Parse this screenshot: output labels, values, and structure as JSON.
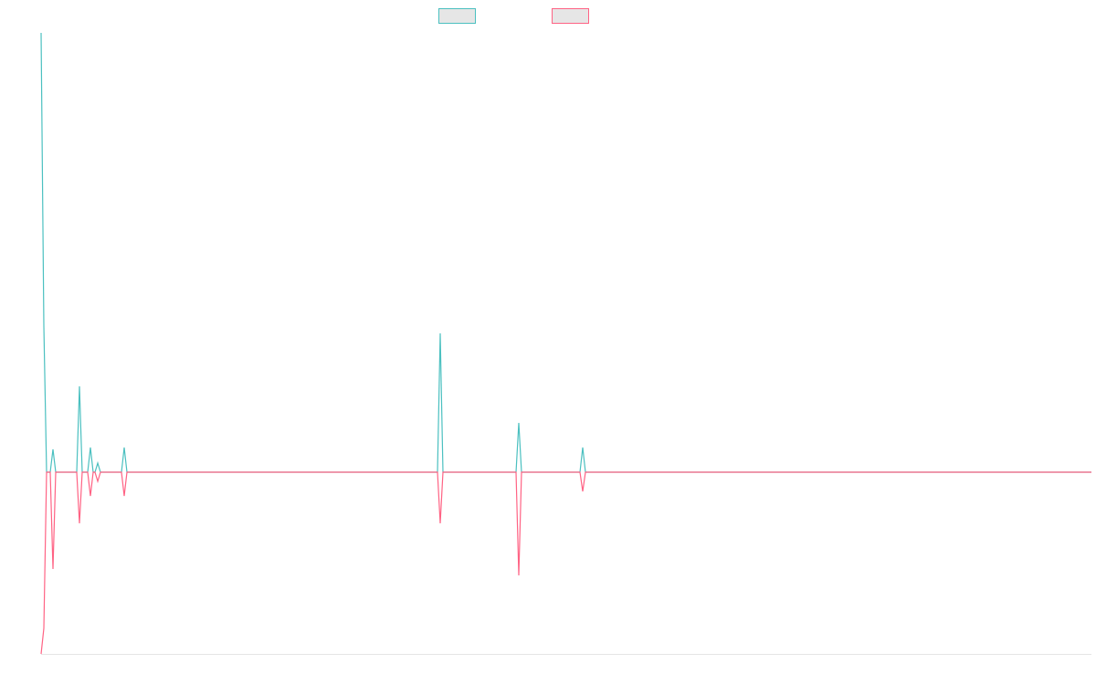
{
  "chart_data": {
    "type": "line",
    "x": [
      0,
      3,
      6,
      10,
      13,
      16,
      39,
      42,
      45,
      51,
      54,
      57,
      59,
      62,
      65,
      88,
      91,
      94,
      434,
      437,
      440,
      520,
      523,
      526,
      590,
      593,
      596,
      1150
    ],
    "xlim": [
      0,
      1150
    ],
    "ylim": [
      -199,
      481
    ],
    "series": [
      {
        "color": "#4bc0c0",
        "values": [
          481,
          160,
          0,
          0,
          25,
          0,
          0,
          94,
          0,
          0,
          27,
          0,
          0,
          10,
          0,
          0,
          27,
          0,
          0,
          152,
          0,
          0,
          54,
          0,
          0,
          27,
          0,
          0
        ]
      },
      {
        "color": "#ff6384",
        "values": [
          -199,
          -171,
          0,
          0,
          -106,
          0,
          0,
          -56,
          0,
          0,
          -26,
          0,
          0,
          -10,
          0,
          0,
          -26,
          0,
          0,
          -56,
          0,
          0,
          -113,
          0,
          0,
          -21,
          0,
          0
        ]
      }
    ],
    "legend": "top"
  }
}
